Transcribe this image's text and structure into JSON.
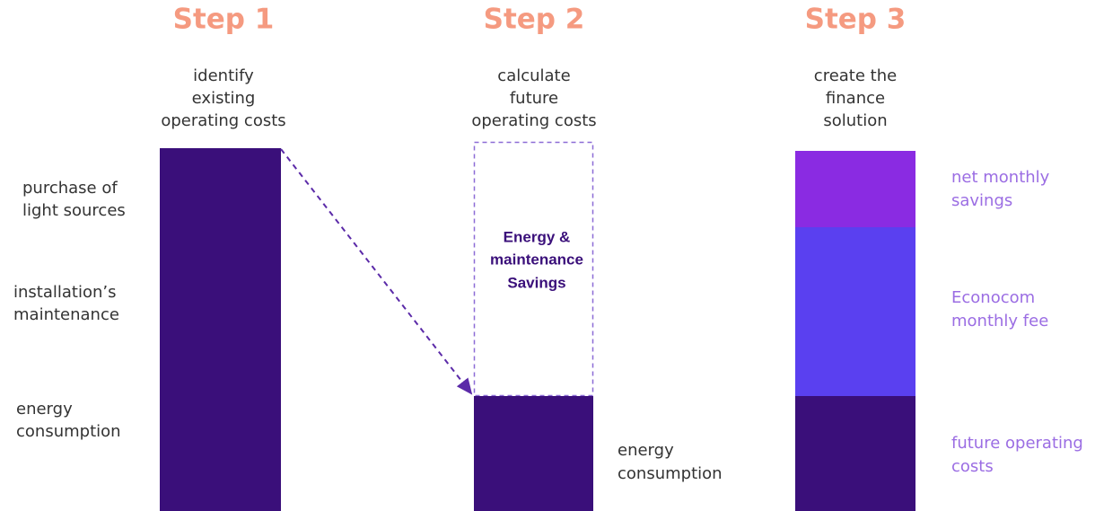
{
  "steps": [
    {
      "title": "Step 1",
      "subtitle": [
        "identify",
        "existing",
        "operating costs"
      ],
      "labels": [
        [
          "purchase of",
          "light sources"
        ],
        [
          "installation’s",
          "maintenance"
        ],
        [
          "energy",
          "consumption"
        ]
      ]
    },
    {
      "title": "Step 2",
      "subtitle": [
        "calculate",
        "future",
        "operating costs"
      ],
      "savings": [
        "Energy &",
        "maintenance",
        "Savings"
      ],
      "labels": [
        [
          "energy",
          "consumption"
        ]
      ]
    },
    {
      "title": "Step 3",
      "subtitle": [
        "create the",
        "finance",
        "solution"
      ],
      "labels": [
        [
          "net monthly",
          "savings"
        ],
        [
          "Econocom",
          "monthly fee"
        ],
        [
          "future operating",
          "costs"
        ]
      ]
    }
  ]
}
